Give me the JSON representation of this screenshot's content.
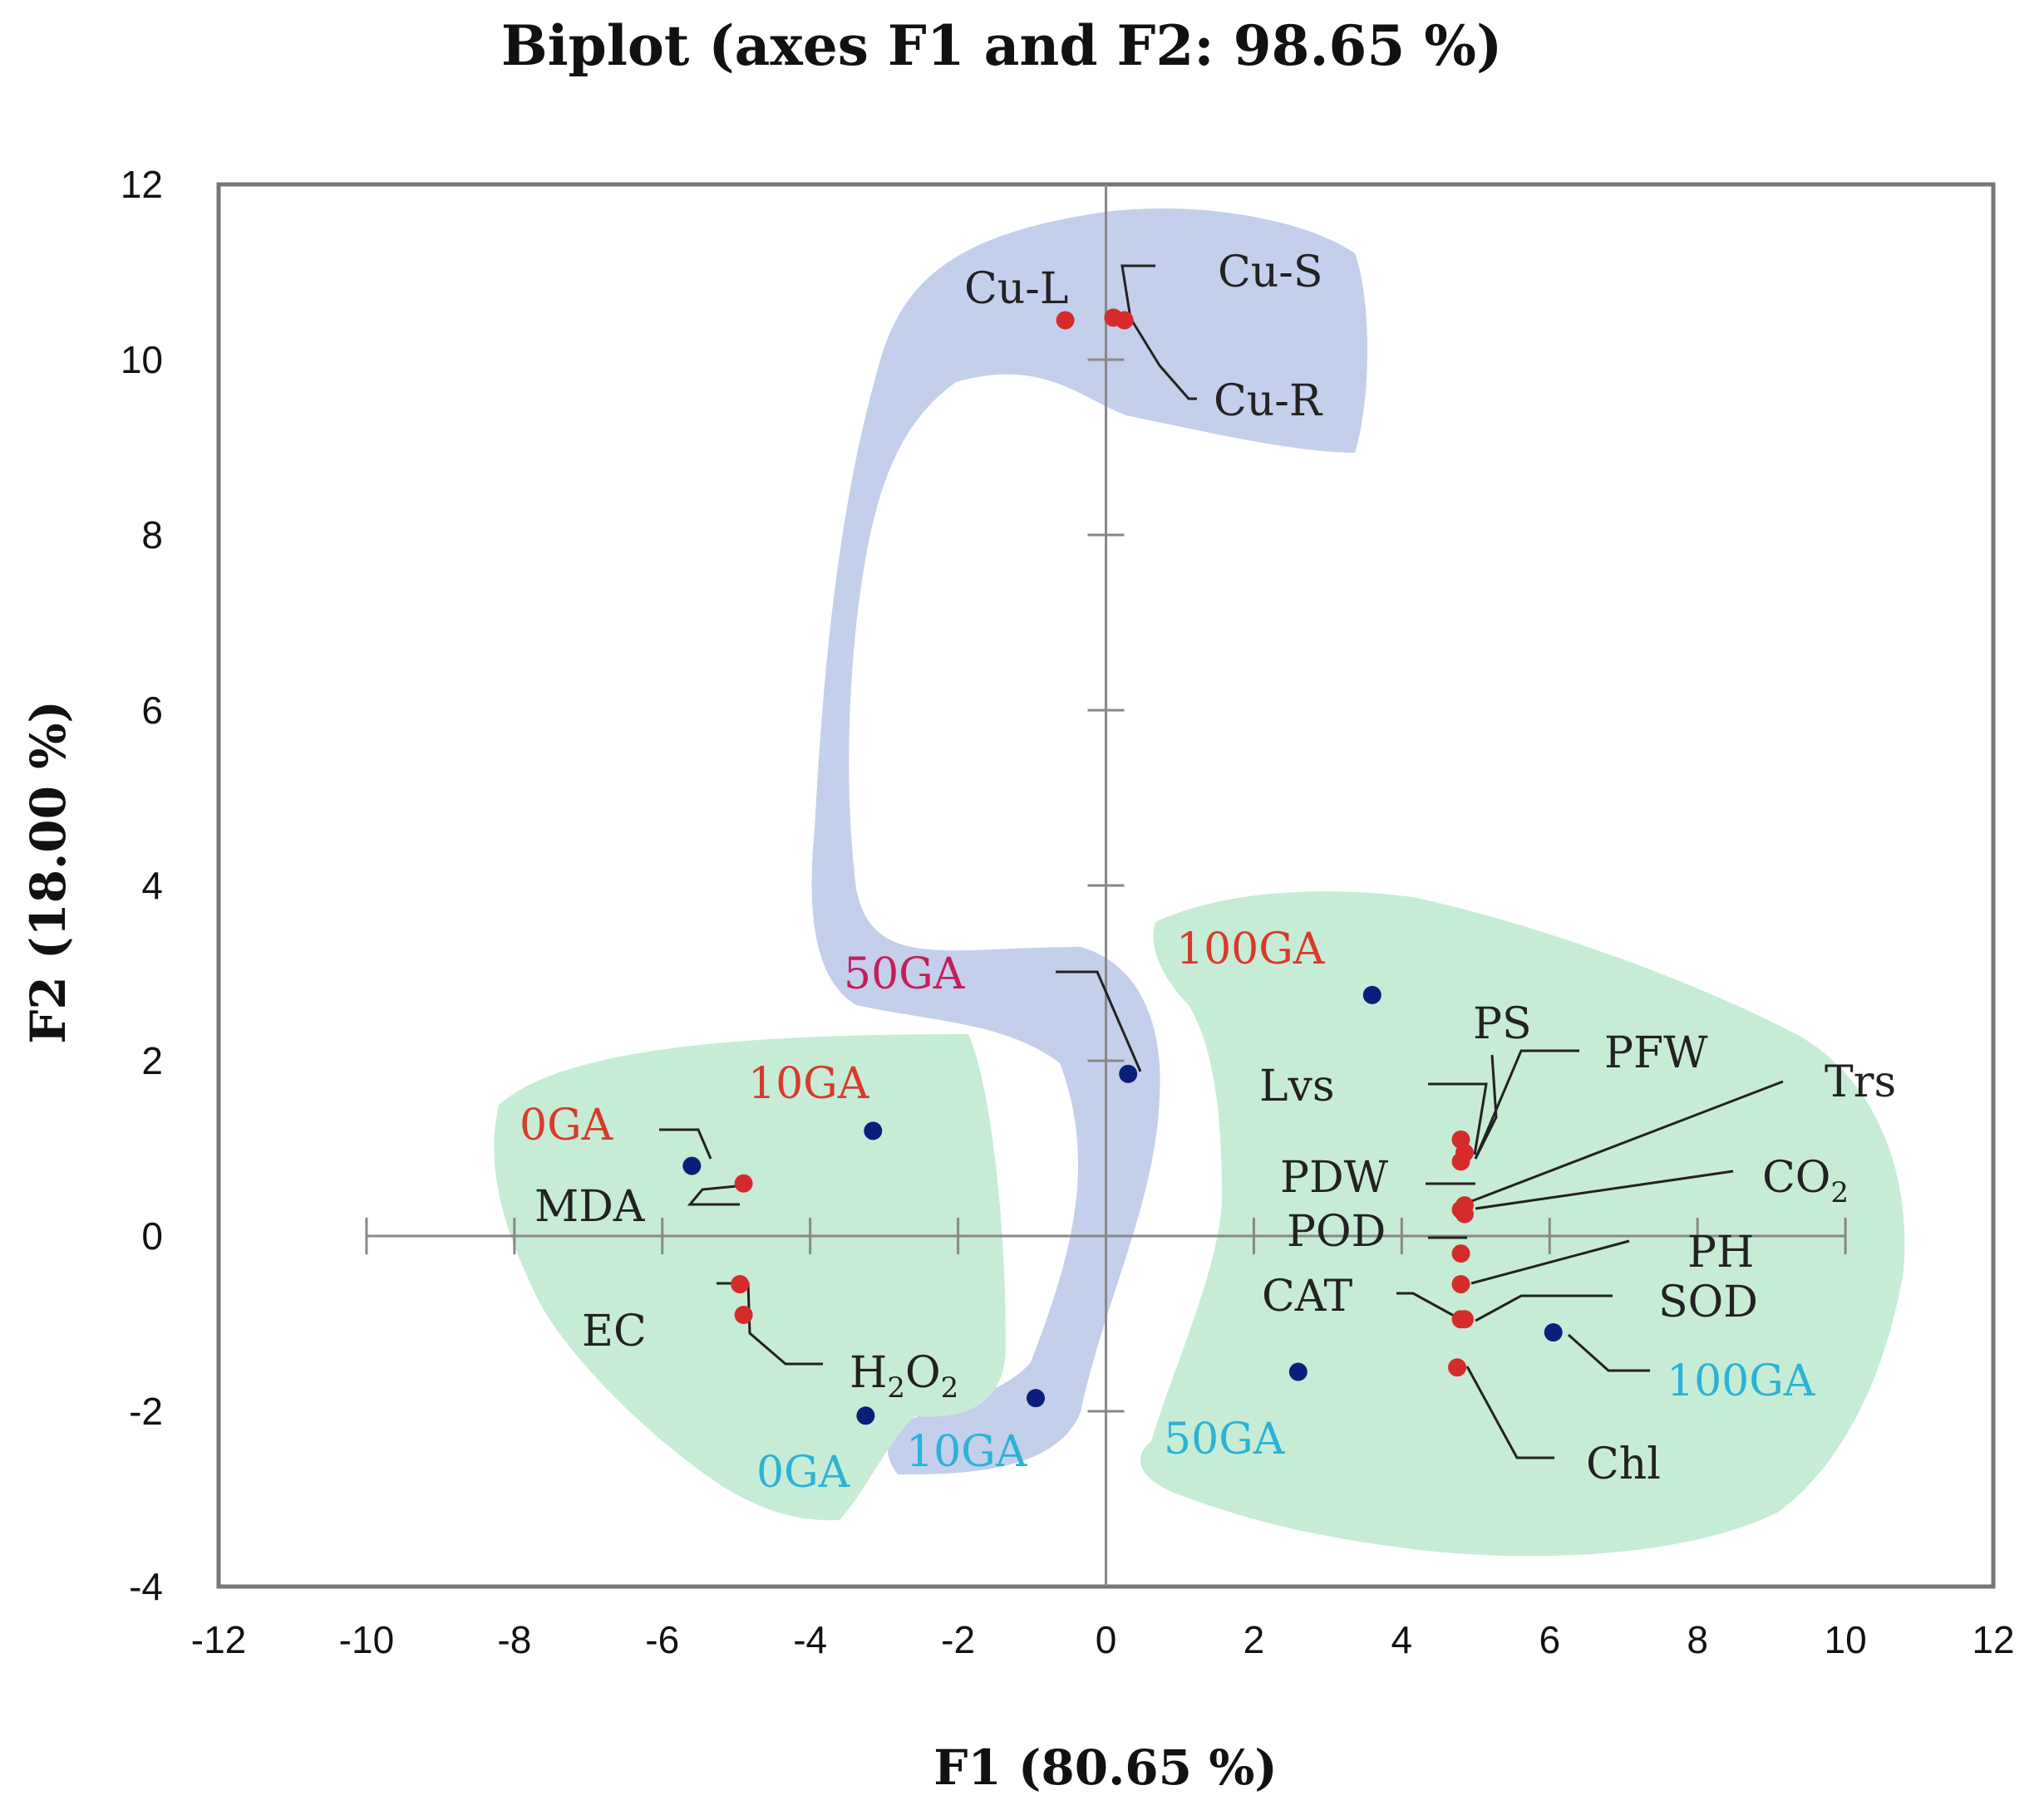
{
  "chart_data": {
    "type": "scatter",
    "title": "Biplot (axes F1 and F2: 98.65 %)",
    "xlabel": "F1 (80.65 %)",
    "ylabel": "F2 (18.00 %)",
    "xlim": [
      -12,
      12
    ],
    "ylim": [
      -4,
      12
    ],
    "x_ticks": [
      "-12",
      "-10",
      "-8",
      "-6",
      "-4",
      "-2",
      "0",
      "2",
      "4",
      "6",
      "8",
      "10",
      "12"
    ],
    "y_ticks": [
      "12",
      "10",
      "8",
      "6",
      "4",
      "2",
      "0",
      "-2",
      "-4"
    ],
    "colors": {
      "variable_point": "#d62b2b",
      "observation_point": "#0b1f7a",
      "label_dark": "#222222",
      "label_red": "#d83a2a",
      "label_cyan": "#2bb3d6",
      "label_magenta": "#c41e5a",
      "region_blue": "#c4cfec",
      "region_green": "#c7ecd6",
      "axis_frame": "#777777"
    },
    "variables": [
      {
        "name": "Cu-L",
        "x": -0.55,
        "y": 10.45
      },
      {
        "name": "Cu-S",
        "x": 0.1,
        "y": 10.48
      },
      {
        "name": "Cu-R",
        "x": 0.25,
        "y": 10.45
      },
      {
        "name": "MDA",
        "x": -4.9,
        "y": 0.6
      },
      {
        "name": "EC",
        "x": -4.95,
        "y": -0.55
      },
      {
        "name": "H2O2",
        "x": -4.9,
        "y": -0.9
      },
      {
        "name": "PS",
        "x": 4.8,
        "y": 1.1
      },
      {
        "name": "PFW",
        "x": 4.85,
        "y": 0.95
      },
      {
        "name": "Lvs",
        "x": 4.8,
        "y": 0.85
      },
      {
        "name": "PDW",
        "x": 4.8,
        "y": 0.3
      },
      {
        "name": "Trs",
        "x": 4.85,
        "y": 0.35
      },
      {
        "name": "CO2",
        "x": 4.85,
        "y": 0.25
      },
      {
        "name": "POD",
        "x": 4.8,
        "y": -0.2
      },
      {
        "name": "PH",
        "x": 4.8,
        "y": -0.55
      },
      {
        "name": "CAT",
        "x": 4.8,
        "y": -0.95
      },
      {
        "name": "SOD",
        "x": 4.85,
        "y": -0.95
      },
      {
        "name": "Chl",
        "x": 4.75,
        "y": -1.5
      }
    ],
    "observations": [
      {
        "name": "0GA",
        "group": "top",
        "x": -5.6,
        "y": 0.8
      },
      {
        "name": "10GA",
        "group": "top",
        "x": -3.15,
        "y": 1.2
      },
      {
        "name": "50GA",
        "group": "mid",
        "x": 0.3,
        "y": 1.85
      },
      {
        "name": "100GA",
        "group": "top",
        "x": 3.6,
        "y": 2.75
      },
      {
        "name": "0GA",
        "group": "bottom",
        "x": -3.25,
        "y": -2.05
      },
      {
        "name": "10GA",
        "group": "bottom",
        "x": -0.95,
        "y": -1.85
      },
      {
        "name": "50GA",
        "group": "bottom",
        "x": 2.6,
        "y": -1.55
      },
      {
        "name": "100GA",
        "group": "bottom",
        "x": 6.05,
        "y": -1.1
      }
    ]
  }
}
